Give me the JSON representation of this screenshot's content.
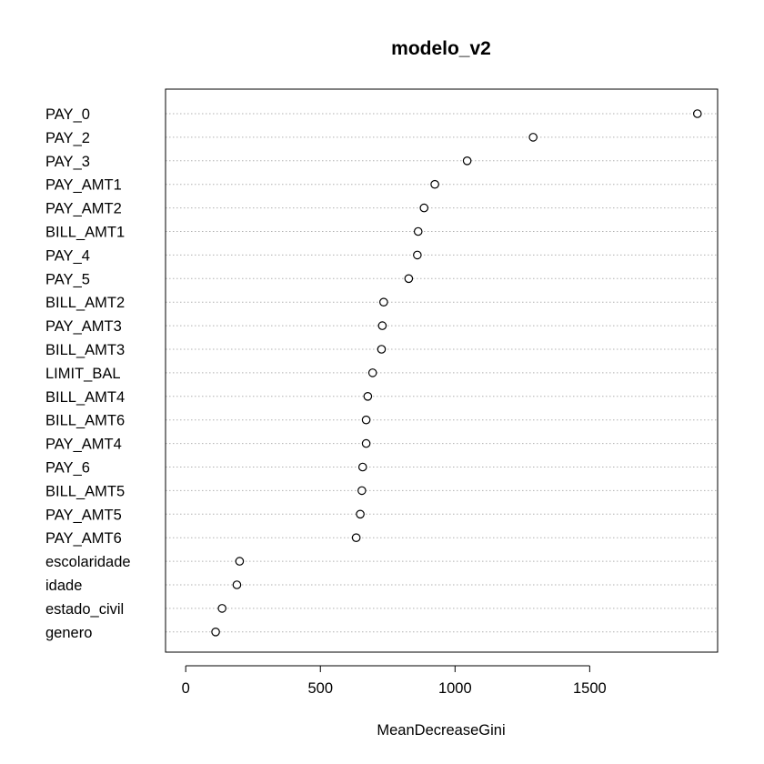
{
  "chart_data": {
    "type": "scatter",
    "title": "modelo_v2",
    "xlabel": "MeanDecreaseGini",
    "ylabel": "",
    "xlim": [
      -75,
      1975
    ],
    "xticks": [
      0,
      500,
      1000,
      1500
    ],
    "grid": "dotted horizontal guide lines",
    "legend": "none",
    "point_style": "open circle",
    "categories": [
      "PAY_0",
      "PAY_2",
      "PAY_3",
      "PAY_AMT1",
      "PAY_AMT2",
      "BILL_AMT1",
      "PAY_4",
      "PAY_5",
      "BILL_AMT2",
      "PAY_AMT3",
      "BILL_AMT3",
      "LIMIT_BAL",
      "BILL_AMT4",
      "BILL_AMT6",
      "PAY_AMT4",
      "PAY_6",
      "BILL_AMT5",
      "PAY_AMT5",
      "PAY_AMT6",
      "escolaridade",
      "idade",
      "estado_civil",
      "genero"
    ],
    "values": [
      1900,
      1290,
      1045,
      925,
      885,
      863,
      860,
      828,
      735,
      730,
      727,
      694,
      676,
      670,
      670,
      657,
      654,
      648,
      633,
      200,
      190,
      135,
      111
    ]
  }
}
